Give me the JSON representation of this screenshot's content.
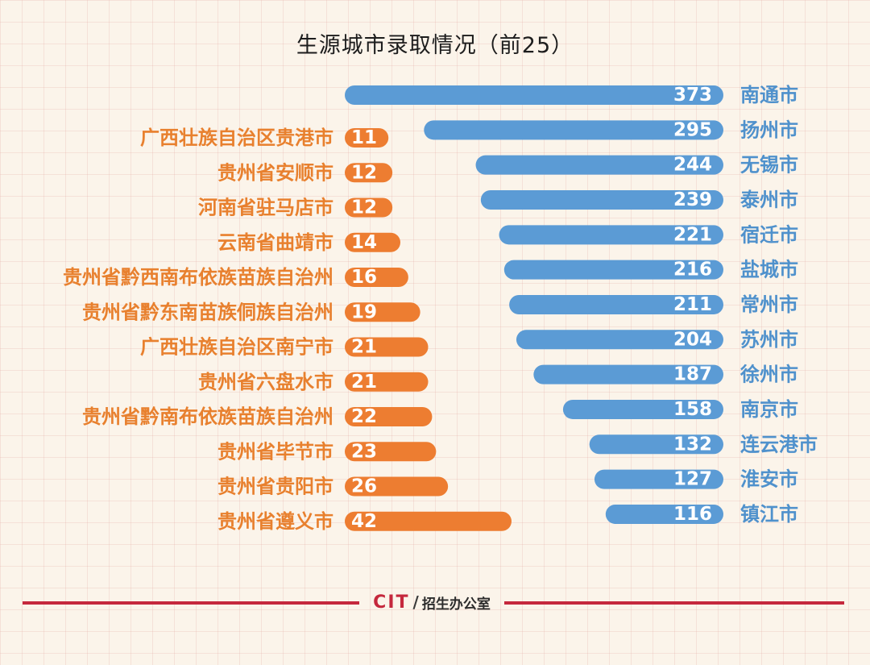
{
  "chart_data": {
    "type": "bar",
    "title": "生源城市录取情况（前25）",
    "series": [
      {
        "categories": [
          "南通市",
          "扬州市",
          "无锡市",
          "泰州市",
          "宿迁市",
          "盐城市",
          "常州市",
          "苏州市",
          "徐州市",
          "南京市",
          "连云港市",
          "淮安市",
          "镇江市"
        ],
        "values": [
          373,
          295,
          244,
          239,
          221,
          216,
          211,
          204,
          187,
          158,
          132,
          127,
          116
        ],
        "color": "#5b9bd5"
      },
      {
        "categories": [
          "广西壮族自治区贵港市",
          "贵州省安顺市",
          "河南省驻马店市",
          "云南省曲靖市",
          "贵州省黔西南布依族苗族自治州",
          "贵州省黔东南苗族侗族自治州",
          "广西壮族自治区南宁市",
          "贵州省六盘水市",
          "贵州省黔南布依族苗族自治州",
          "贵州省毕节市",
          "贵州省贵阳市",
          "贵州省遵义市"
        ],
        "values": [
          11,
          12,
          12,
          14,
          16,
          19,
          21,
          21,
          22,
          23,
          26,
          42
        ],
        "color": "#ed7d31"
      }
    ]
  },
  "footer": {
    "logo": "CIT",
    "slash": "/",
    "office": "招生办公室",
    "line_color": "#c5283d"
  }
}
